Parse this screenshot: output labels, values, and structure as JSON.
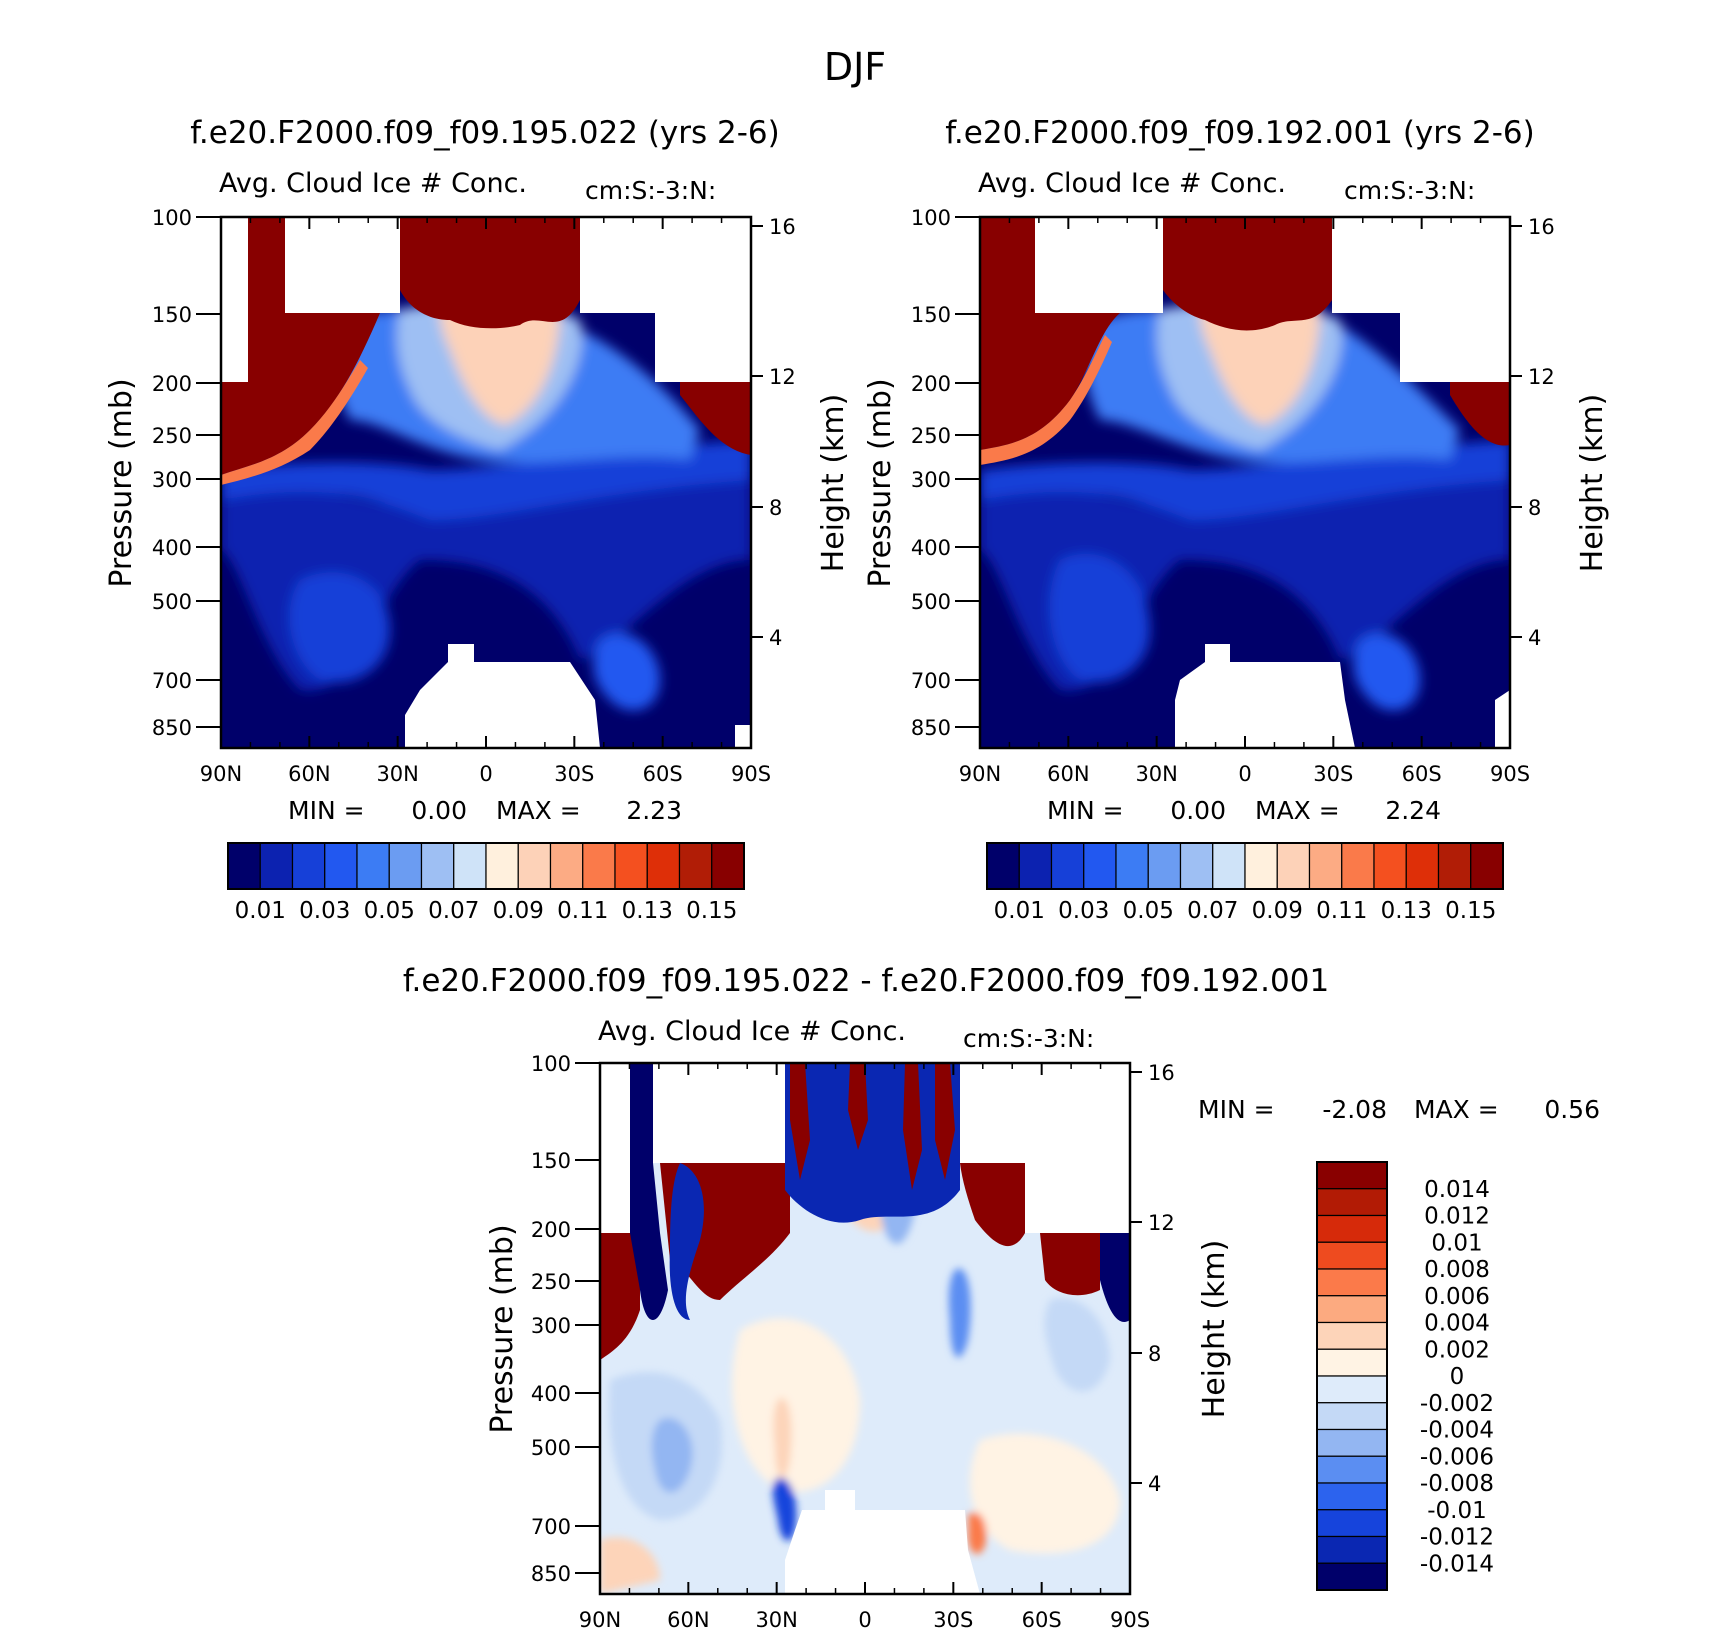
{
  "figure": {
    "title": "DJF"
  },
  "colors": {
    "abs_scale": [
      "#00006a",
      "#0c22b0",
      "#1640d8",
      "#2258f0",
      "#3c7cf4",
      "#6b9cf2",
      "#9ebff3",
      "#cfe3f8",
      "#fff0dd",
      "#fdd2b8",
      "#fcab84",
      "#fa7a4a",
      "#f4501f",
      "#de2f08",
      "#b11d06",
      "#880000"
    ],
    "diff_scale": [
      "#00006a",
      "#0a27b2",
      "#1644dc",
      "#2c63ee",
      "#5b8ef2",
      "#93b6f2",
      "#c4d9f6",
      "#deebfa",
      "#fff3e4",
      "#fdd4b9",
      "#fcaa80",
      "#fb7a4a",
      "#ee4b1f",
      "#d62a0a",
      "#b21b05",
      "#890000"
    ]
  },
  "chart_data": [
    {
      "type": "heatmap",
      "title": "f.e20.F2000.f09_f09.195.022 (yrs 2-6)",
      "subtitle": "Avg. Cloud Ice # Conc.",
      "units": "cm:S:-3:N:",
      "ylabel": "Pressure (mb)",
      "ylabel_right": "Height (km)",
      "x_ticks": [
        "90N",
        "60N",
        "30N",
        "0",
        "30S",
        "60S",
        "90S"
      ],
      "y_ticks": [
        "100",
        "150",
        "200",
        "250",
        "300",
        "400",
        "500",
        "700",
        "850"
      ],
      "y_ticks_right": [
        "16",
        "12",
        "8",
        "4"
      ],
      "min_label": "MIN =",
      "min_value": "0.00",
      "max_label": "MAX =",
      "max_value": "2.23",
      "colorbar_labels": [
        "0.01",
        "0.03",
        "0.05",
        "0.07",
        "0.09",
        "0.11",
        "0.13",
        "0.15"
      ]
    },
    {
      "type": "heatmap",
      "title": "f.e20.F2000.f09_f09.192.001 (yrs 2-6)",
      "subtitle": "Avg. Cloud Ice # Conc.",
      "units": "cm:S:-3:N:",
      "ylabel": "Pressure (mb)",
      "ylabel_right": "Height (km)",
      "x_ticks": [
        "90N",
        "60N",
        "30N",
        "0",
        "30S",
        "60S",
        "90S"
      ],
      "y_ticks": [
        "100",
        "150",
        "200",
        "250",
        "300",
        "400",
        "500",
        "700",
        "850"
      ],
      "y_ticks_right": [
        "16",
        "12",
        "8",
        "4"
      ],
      "min_label": "MIN =",
      "min_value": "0.00",
      "max_label": "MAX =",
      "max_value": "2.24",
      "colorbar_labels": [
        "0.01",
        "0.03",
        "0.05",
        "0.07",
        "0.09",
        "0.11",
        "0.13",
        "0.15"
      ]
    },
    {
      "type": "heatmap",
      "title": "f.e20.F2000.f09_f09.195.022 - f.e20.F2000.f09_f09.192.001",
      "subtitle": "Avg. Cloud Ice # Conc.",
      "units": "cm:S:-3:N:",
      "ylabel": "Pressure (mb)",
      "ylabel_right": "Height (km)",
      "x_ticks": [
        "90N",
        "60N",
        "30N",
        "0",
        "30S",
        "60S",
        "90S"
      ],
      "y_ticks": [
        "100",
        "150",
        "200",
        "250",
        "300",
        "400",
        "500",
        "700",
        "850"
      ],
      "y_ticks_right": [
        "16",
        "12",
        "8",
        "4"
      ],
      "min_label": "MIN =",
      "min_value": "-2.08",
      "max_label": "MAX =",
      "max_value": "0.56",
      "colorbar_labels": [
        "0.014",
        "0.012",
        "0.01",
        "0.008",
        "0.006",
        "0.004",
        "0.002",
        "0",
        "-0.002",
        "-0.004",
        "-0.006",
        "-0.008",
        "-0.01",
        "-0.012",
        "-0.014"
      ]
    }
  ]
}
